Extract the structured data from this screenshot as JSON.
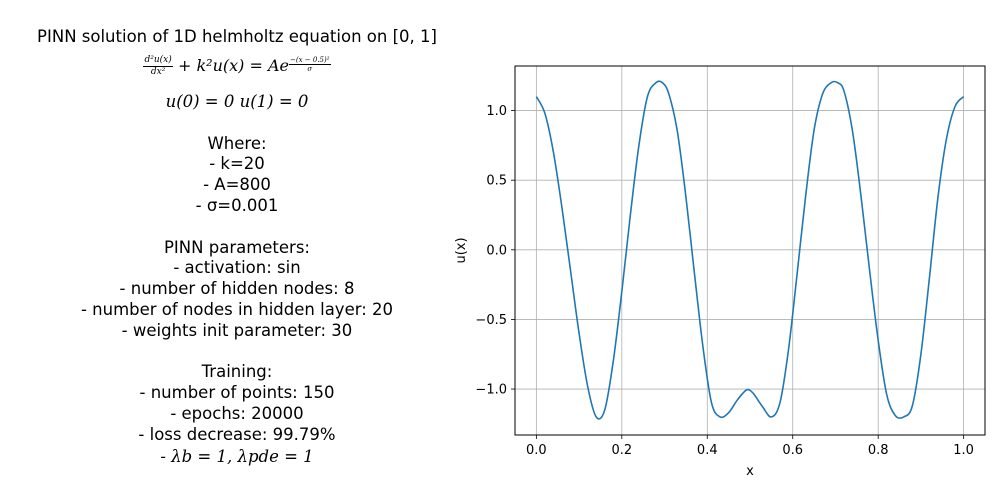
{
  "panel": {
    "title": "PINN solution of 1D helmholtz equation on [0, 1]",
    "equation": {
      "lhs_num": "d²u(x)",
      "lhs_den": "dx²",
      "middle": "+ k²u(x) = Ae",
      "exp_num": "−(x − 0.5)²",
      "exp_den": "σ"
    },
    "boundary": "u(0) = 0    u(1) = 0",
    "where_heading": "Where:",
    "where_items": [
      "- k=20",
      "- A=800",
      "- σ=0.001"
    ],
    "pinn_heading": "PINN parameters:",
    "pinn_items": [
      "- activation: sin",
      "- number of hidden nodes: 8",
      "- number of nodes in hidden layer: 20",
      "- weights init parameter: 30"
    ],
    "training_heading": "Training:",
    "training_items": [
      "- number of points: 150",
      "- epochs: 20000",
      "- loss decrease: 99.79%",
      "- λb = 1, λpde = 1"
    ]
  },
  "chart_data": {
    "type": "line",
    "xlabel": "x",
    "ylabel": "u(x)",
    "xlim": [
      -0.05,
      1.05
    ],
    "ylim": [
      -1.33,
      1.32
    ],
    "xticks": [
      0.0,
      0.2,
      0.4,
      0.6,
      0.8,
      1.0
    ],
    "xtick_labels": [
      "0.0",
      "0.2",
      "0.4",
      "0.6",
      "0.8",
      "1.0"
    ],
    "yticks": [
      -1.0,
      -0.5,
      0.0,
      0.5,
      1.0
    ],
    "ytick_labels": [
      "−1.0",
      "−0.5",
      "0.0",
      "0.5",
      "1.0"
    ],
    "grid": true,
    "series": [
      {
        "color": "#1f77b4",
        "x": [
          0.0,
          0.02,
          0.04,
          0.06,
          0.08,
          0.1,
          0.12,
          0.14,
          0.16,
          0.18,
          0.2,
          0.22,
          0.24,
          0.26,
          0.28,
          0.295,
          0.31,
          0.33,
          0.35,
          0.37,
          0.39,
          0.41,
          0.43,
          0.45,
          0.47,
          0.49,
          0.5,
          0.51,
          0.53,
          0.55,
          0.57,
          0.59,
          0.61,
          0.63,
          0.65,
          0.67,
          0.69,
          0.705,
          0.72,
          0.74,
          0.76,
          0.78,
          0.8,
          0.82,
          0.84,
          0.86,
          0.88,
          0.9,
          0.92,
          0.94,
          0.96,
          0.98,
          1.0
        ],
        "y": [
          1.1,
          0.98,
          0.7,
          0.3,
          -0.15,
          -0.6,
          -0.98,
          -1.2,
          -1.15,
          -0.8,
          -0.3,
          0.25,
          0.75,
          1.1,
          1.2,
          1.2,
          1.12,
          0.85,
          0.38,
          -0.17,
          -0.7,
          -1.1,
          -1.2,
          -1.17,
          -1.08,
          -1.01,
          -1.01,
          -1.04,
          -1.13,
          -1.2,
          -1.1,
          -0.72,
          -0.18,
          0.38,
          0.86,
          1.12,
          1.2,
          1.2,
          1.14,
          0.85,
          0.38,
          -0.15,
          -0.65,
          -1.04,
          -1.19,
          -1.2,
          -1.12,
          -0.75,
          -0.2,
          0.38,
          0.8,
          1.03,
          1.1
        ]
      }
    ]
  }
}
